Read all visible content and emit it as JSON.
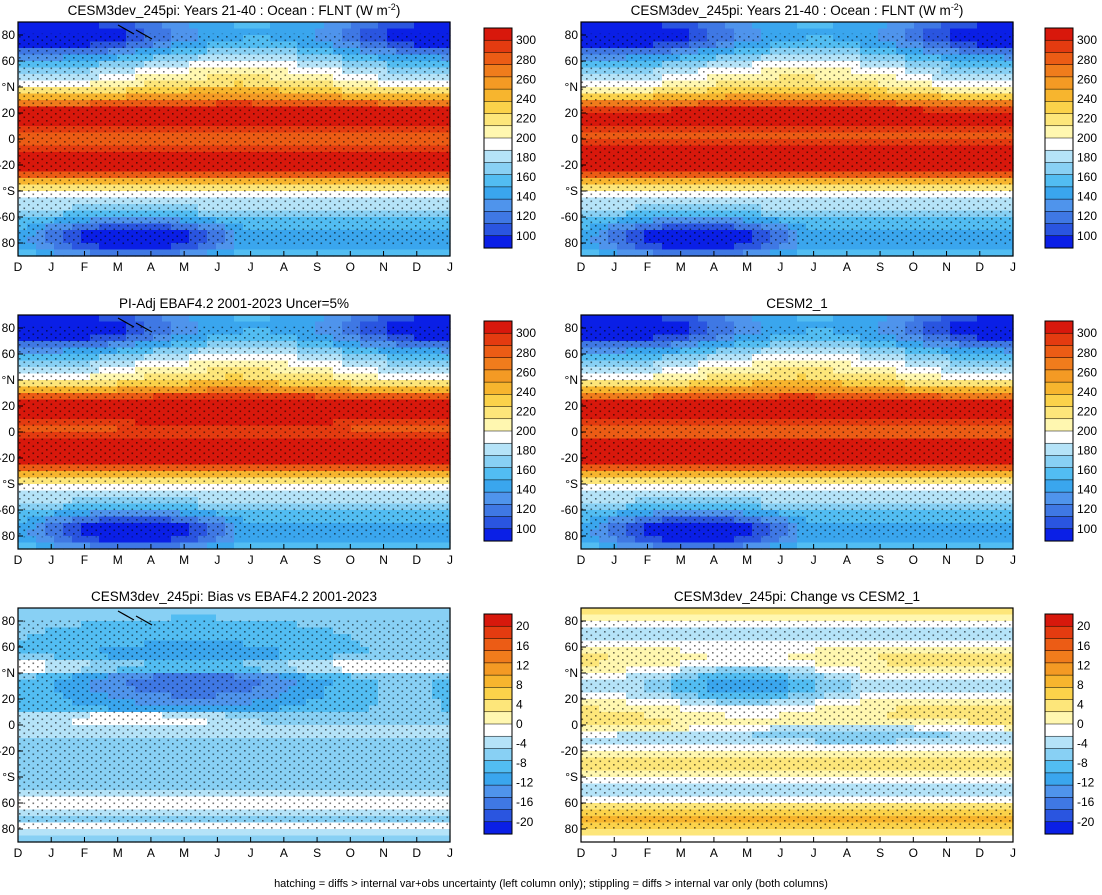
{
  "palette_abs": [
    "#0a1fe6",
    "#2a55e0",
    "#3f78e4",
    "#4f94ec",
    "#3aa6ee",
    "#52bdf2",
    "#88d0f4",
    "#b5e3f8",
    "#ffffff",
    "#fff7b0",
    "#fde67a",
    "#fbd24a",
    "#f7b52e",
    "#f49a24",
    "#f07c1c",
    "#ec5c15",
    "#e43b10",
    "#d8180c"
  ],
  "palette_diff": [
    "#0a1fe6",
    "#2a55e0",
    "#3f78e4",
    "#4f94ec",
    "#3aa6ee",
    "#52bdf2",
    "#88d0f4",
    "#b5e3f8",
    "#ffffff",
    "#fff7b0",
    "#fde67a",
    "#fbd24a",
    "#f7b52e",
    "#f49a24",
    "#f07c1c",
    "#ec5c15",
    "#e43b10",
    "#d8180c"
  ],
  "chart_data": [
    {
      "type": "heatmap",
      "title": "CESM3dev_245pi: Years 21-40 : Ocean : FLNT (W m",
      "title_sup": "-2",
      "title_end": ")",
      "x_tick_labels": [
        "D",
        "J",
        "F",
        "M",
        "A",
        "M",
        "J",
        "J",
        "A",
        "S",
        "O",
        "N",
        "D",
        "J"
      ],
      "y_tick_labels": [
        "80",
        "60",
        "°N",
        "20",
        "0",
        "-20",
        "°S",
        "-60",
        "80"
      ],
      "y_range": [
        -90,
        90
      ],
      "colorbar_labels": [
        "300",
        "280",
        "260",
        "240",
        "220",
        "200",
        "180",
        "160",
        "140",
        "120",
        "100"
      ],
      "colorbar_scale": "abs",
      "field": "abs",
      "stipple": true,
      "hatch": true
    },
    {
      "type": "heatmap",
      "title": "CESM3dev_245pi: Years 21-40 : Ocean : FLNT (W m",
      "title_sup": "-2",
      "title_end": ")",
      "x_tick_labels": [
        "D",
        "J",
        "F",
        "M",
        "A",
        "M",
        "J",
        "J",
        "A",
        "S",
        "O",
        "N",
        "D",
        "J"
      ],
      "y_tick_labels": [
        "80",
        "60",
        "°N",
        "20",
        "0",
        "-20",
        "°S",
        "-60",
        "80"
      ],
      "y_range": [
        -90,
        90
      ],
      "colorbar_labels": [
        "300",
        "280",
        "260",
        "240",
        "220",
        "200",
        "180",
        "160",
        "140",
        "120",
        "100"
      ],
      "colorbar_scale": "abs",
      "field": "abs2",
      "stipple": true,
      "hatch": false
    },
    {
      "type": "heatmap",
      "title": "PI-Adj EBAF4.2 2001-2023 Uncer=5%",
      "title_sup": "",
      "title_end": "",
      "x_tick_labels": [
        "D",
        "J",
        "F",
        "M",
        "A",
        "M",
        "J",
        "J",
        "A",
        "S",
        "O",
        "N",
        "D",
        "J"
      ],
      "y_tick_labels": [
        "80",
        "60",
        "°N",
        "20",
        "0",
        "-20",
        "°S",
        "-60",
        "80"
      ],
      "y_range": [
        -90,
        90
      ],
      "colorbar_labels": [
        "300",
        "280",
        "260",
        "240",
        "220",
        "200",
        "180",
        "160",
        "140",
        "120",
        "100"
      ],
      "colorbar_scale": "abs",
      "field": "obs",
      "stipple": true,
      "hatch": true
    },
    {
      "type": "heatmap",
      "title": "CESM2_1",
      "title_sup": "",
      "title_end": "",
      "x_tick_labels": [
        "D",
        "J",
        "F",
        "M",
        "A",
        "M",
        "J",
        "J",
        "A",
        "S",
        "O",
        "N",
        "D",
        "J"
      ],
      "y_tick_labels": [
        "80",
        "60",
        "°N",
        "20",
        "0",
        "-20",
        "°S",
        "-60",
        "80"
      ],
      "y_range": [
        -90,
        90
      ],
      "colorbar_labels": [
        "300",
        "280",
        "260",
        "240",
        "220",
        "200",
        "180",
        "160",
        "140",
        "120",
        "100"
      ],
      "colorbar_scale": "abs",
      "field": "cesm2",
      "stipple": true,
      "hatch": false
    },
    {
      "type": "heatmap",
      "title": "CESM3dev_245pi: Bias vs EBAF4.2 2001-2023",
      "title_sup": "",
      "title_end": "",
      "x_tick_labels": [
        "D",
        "J",
        "F",
        "M",
        "A",
        "M",
        "J",
        "J",
        "A",
        "S",
        "O",
        "N",
        "D",
        "J"
      ],
      "y_tick_labels": [
        "80",
        "60",
        "°N",
        "20",
        "0",
        "-20",
        "°S",
        "60",
        "80"
      ],
      "y_range": [
        -90,
        90
      ],
      "colorbar_labels": [
        "20",
        "16",
        "12",
        "8",
        "4",
        "0",
        "-4",
        "-8",
        "-12",
        "-16",
        "-20"
      ],
      "colorbar_scale": "diff",
      "field": "bias",
      "stipple": true,
      "hatch": true
    },
    {
      "type": "heatmap",
      "title": "CESM3dev_245pi: Change vs CESM2_1",
      "title_sup": "",
      "title_end": "",
      "x_tick_labels": [
        "D",
        "J",
        "F",
        "M",
        "A",
        "M",
        "J",
        "J",
        "A",
        "S",
        "O",
        "N",
        "D",
        "J"
      ],
      "y_tick_labels": [
        "80",
        "60",
        "°N",
        "20",
        "0",
        "-20",
        "°S",
        "60",
        "80"
      ],
      "y_range": [
        -90,
        90
      ],
      "colorbar_labels": [
        "20",
        "16",
        "12",
        "8",
        "4",
        "0",
        "-4",
        "-8",
        "-12",
        "-16",
        "-20"
      ],
      "colorbar_scale": "diff",
      "field": "change",
      "stipple": true,
      "hatch": false
    }
  ],
  "footnote": "hatching = diffs > internal var+obs uncertainty (left column only); stippling = diffs > internal var only (both columns)"
}
